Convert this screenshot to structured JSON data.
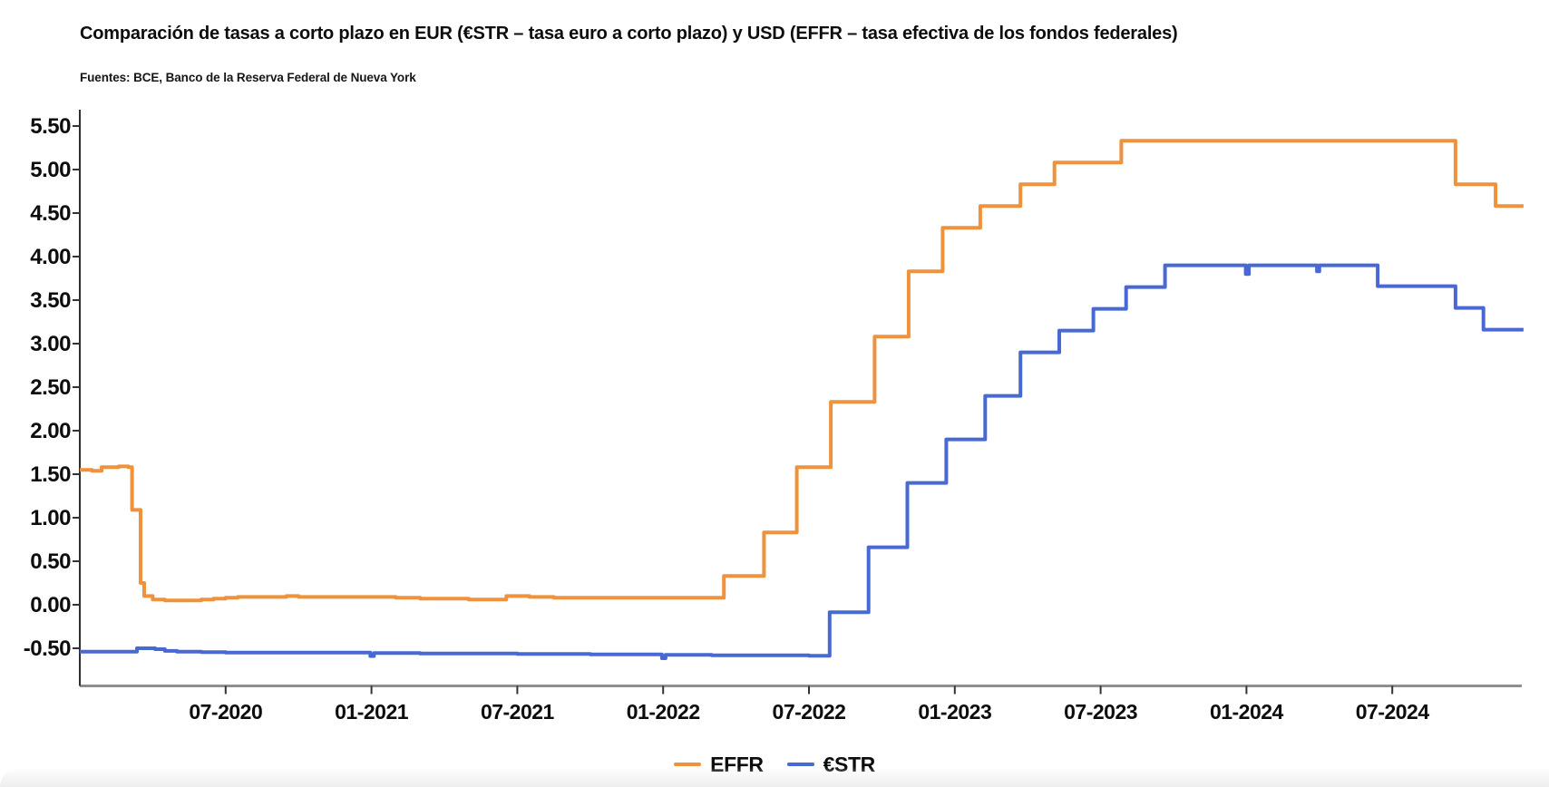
{
  "title": "Comparación de tasas a corto plazo en EUR (€STR – tasa euro a corto plazo) y USD (EFFR – tasa efectiva de los fondos federales)",
  "source": "Fuentes: BCE, Banco de la Reserva Federal de Nueva York",
  "legend": {
    "items": [
      {
        "label": "EFFR",
        "color": "#F0913C"
      },
      {
        "label": "€STR",
        "color": "#4869D4"
      }
    ]
  },
  "chart_data": {
    "type": "line",
    "line_style": "step",
    "title": "Comparación de tasas a corto plazo en EUR (€STR – tasa euro a corto plazo) y USD (EFFR – tasa efectiva de los fondos federales)",
    "source": "Fuentes: BCE, Banco de la Reserva Federal de Nueva York",
    "grid": "off",
    "legend_position": "bottom-center",
    "x_unit": "months since 2020-01",
    "x_domain": [
      0,
      59.4
    ],
    "y_unit": "percent",
    "ylim": [
      -1.0,
      5.6
    ],
    "x_axis": {
      "tick_months": [
        6,
        12,
        18,
        24,
        30,
        36,
        42,
        48,
        54
      ],
      "tick_labels": [
        "07-2020",
        "01-2021",
        "07-2021",
        "01-2022",
        "07-2022",
        "01-2023",
        "07-2023",
        "01-2024",
        "07-2024"
      ]
    },
    "y_axis": {
      "tick_values": [
        5.5,
        5.0,
        4.5,
        4.0,
        3.5,
        3.0,
        2.5,
        2.0,
        1.5,
        1.0,
        0.5,
        0.0,
        -0.5
      ],
      "tick_labels": [
        "5.50",
        "5.00",
        "4.50",
        "4.00",
        "3.50",
        "3.00",
        "2.50",
        "2.00",
        "1.50",
        "1.00",
        "0.50",
        "0.00",
        "-0.50"
      ]
    },
    "series": [
      {
        "name": "EFFR",
        "color": "#F0913C",
        "points": [
          [
            0,
            1.55
          ],
          [
            0.5,
            1.54
          ],
          [
            0.9,
            1.58
          ],
          [
            1.6,
            1.59
          ],
          [
            2.0,
            1.58
          ],
          [
            2.15,
            1.09
          ],
          [
            2.5,
            0.25
          ],
          [
            2.65,
            0.1
          ],
          [
            3.0,
            0.06
          ],
          [
            3.5,
            0.05
          ],
          [
            4.5,
            0.05
          ],
          [
            5.0,
            0.06
          ],
          [
            5.5,
            0.07
          ],
          [
            6.0,
            0.08
          ],
          [
            6.5,
            0.09
          ],
          [
            7.5,
            0.09
          ],
          [
            8.5,
            0.1
          ],
          [
            9.0,
            0.09
          ],
          [
            10,
            0.09
          ],
          [
            11,
            0.09
          ],
          [
            12,
            0.09
          ],
          [
            13,
            0.08
          ],
          [
            14,
            0.07
          ],
          [
            15,
            0.07
          ],
          [
            16,
            0.06
          ],
          [
            17,
            0.06
          ],
          [
            17.55,
            0.1
          ],
          [
            18.5,
            0.09
          ],
          [
            19.5,
            0.08
          ],
          [
            20.5,
            0.08
          ],
          [
            21.5,
            0.08
          ],
          [
            22.5,
            0.08
          ],
          [
            24,
            0.08
          ],
          [
            25.5,
            0.08
          ],
          [
            26.5,
            0.33
          ],
          [
            28.15,
            0.83
          ],
          [
            29.5,
            1.58
          ],
          [
            30.9,
            2.33
          ],
          [
            32.7,
            3.08
          ],
          [
            34.1,
            3.83
          ],
          [
            35.5,
            4.33
          ],
          [
            37.05,
            4.58
          ],
          [
            38.7,
            4.83
          ],
          [
            40.1,
            5.08
          ],
          [
            42.85,
            5.33
          ],
          [
            56.6,
            4.83
          ],
          [
            58.25,
            4.58
          ],
          [
            59.4,
            4.58
          ]
        ]
      },
      {
        "name": "€STR",
        "color": "#4869D4",
        "points": [
          [
            0,
            -0.54
          ],
          [
            1,
            -0.54
          ],
          [
            2,
            -0.54
          ],
          [
            2.35,
            -0.5
          ],
          [
            3.1,
            -0.51
          ],
          [
            3.5,
            -0.53
          ],
          [
            4,
            -0.54
          ],
          [
            5,
            -0.545
          ],
          [
            6,
            -0.55
          ],
          [
            7,
            -0.55
          ],
          [
            8,
            -0.55
          ],
          [
            9,
            -0.55
          ],
          [
            10,
            -0.55
          ],
          [
            11,
            -0.55
          ],
          [
            11.95,
            -0.59
          ],
          [
            12.1,
            -0.555
          ],
          [
            13,
            -0.555
          ],
          [
            14,
            -0.56
          ],
          [
            15,
            -0.56
          ],
          [
            16,
            -0.56
          ],
          [
            17,
            -0.56
          ],
          [
            18,
            -0.565
          ],
          [
            19,
            -0.565
          ],
          [
            20,
            -0.565
          ],
          [
            21,
            -0.57
          ],
          [
            22,
            -0.57
          ],
          [
            23,
            -0.57
          ],
          [
            23.95,
            -0.615
          ],
          [
            24.1,
            -0.575
          ],
          [
            25,
            -0.575
          ],
          [
            26,
            -0.58
          ],
          [
            27,
            -0.58
          ],
          [
            28,
            -0.58
          ],
          [
            29,
            -0.58
          ],
          [
            30,
            -0.585
          ],
          [
            30.85,
            -0.085
          ],
          [
            32.45,
            0.66
          ],
          [
            34.05,
            1.4
          ],
          [
            35.65,
            1.9
          ],
          [
            37.25,
            2.4
          ],
          [
            38.7,
            2.9
          ],
          [
            40.3,
            3.15
          ],
          [
            41.7,
            3.4
          ],
          [
            43.05,
            3.65
          ],
          [
            44.65,
            3.9
          ],
          [
            47.97,
            3.8
          ],
          [
            48.1,
            3.9
          ],
          [
            50.9,
            3.83
          ],
          [
            51.0,
            3.9
          ],
          [
            53.4,
            3.66
          ],
          [
            56.6,
            3.41
          ],
          [
            57.75,
            3.16
          ],
          [
            59.4,
            3.16
          ]
        ]
      }
    ]
  }
}
